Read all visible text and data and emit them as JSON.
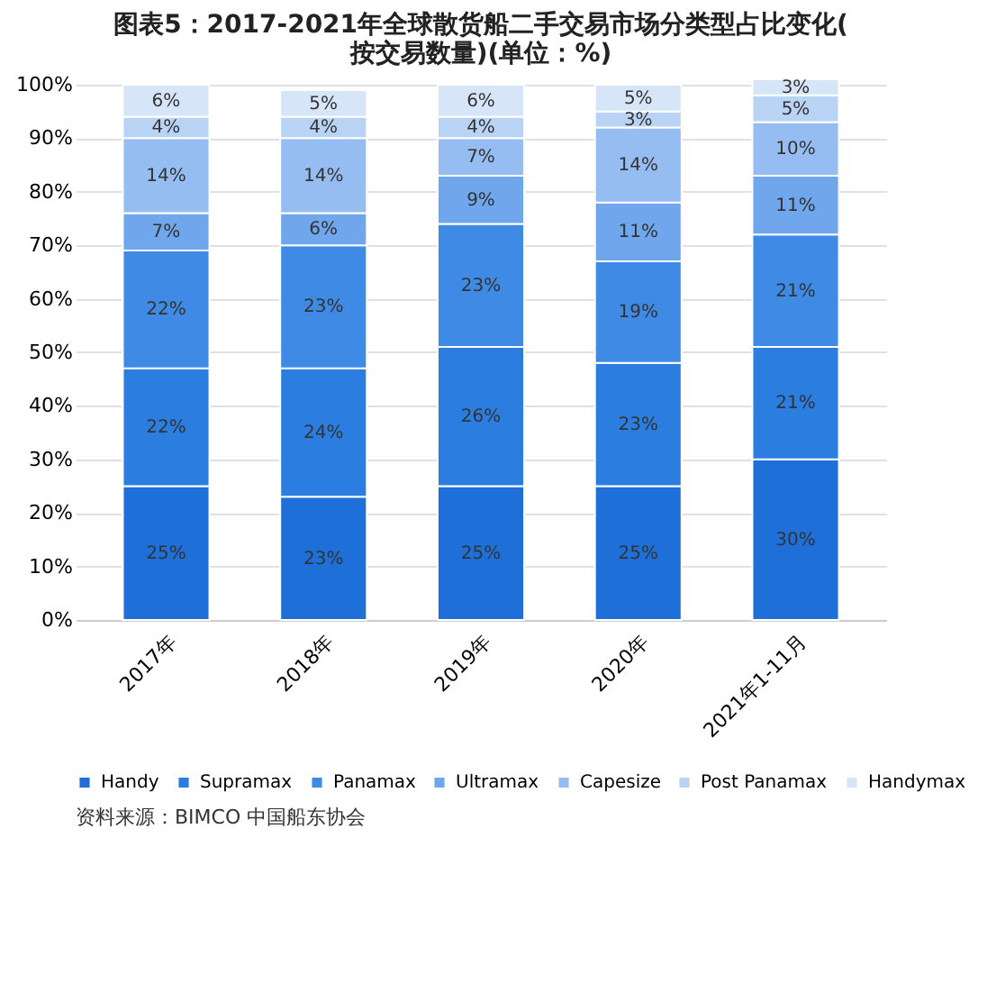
{
  "chart_data": {
    "type": "bar",
    "stacked": true,
    "title": "图表5：2017-2021年全球散货船二手交易市场分类型占比变化(按交易数量)(单位：%)",
    "categories": [
      "2017年",
      "2018年",
      "2019年",
      "2020年",
      "2021年1-11月"
    ],
    "ylim": [
      0,
      101
    ],
    "yticks": [
      {
        "value": 0,
        "label": "0%"
      },
      {
        "value": 10,
        "label": "10%"
      },
      {
        "value": 20,
        "label": "20%"
      },
      {
        "value": 30,
        "label": "30%"
      },
      {
        "value": 40,
        "label": "40%"
      },
      {
        "value": 50,
        "label": "50%"
      },
      {
        "value": 60,
        "label": "60%"
      },
      {
        "value": 70,
        "label": "70%"
      },
      {
        "value": 80,
        "label": "80%"
      },
      {
        "value": 90,
        "label": "90%"
      },
      {
        "value": 100,
        "label": "100%"
      }
    ],
    "grid": "y",
    "legend": "bottom",
    "series": [
      {
        "name": "Handy",
        "color": "#1f6fd8",
        "values": [
          25,
          23,
          25,
          25,
          30
        ],
        "value_labels": [
          "25%",
          "23%",
          "25%",
          "25%",
          "30%"
        ]
      },
      {
        "name": "Supramax",
        "color": "#2b7de0",
        "values": [
          22,
          24,
          26,
          23,
          21
        ],
        "value_labels": [
          "22%",
          "24%",
          "26%",
          "23%",
          "21%"
        ]
      },
      {
        "name": "Panamax",
        "color": "#3f8ae4",
        "values": [
          22,
          23,
          23,
          19,
          21
        ],
        "value_labels": [
          "22%",
          "23%",
          "23%",
          "19%",
          "21%"
        ]
      },
      {
        "name": "Ultramax",
        "color": "#6fa6ec",
        "values": [
          7,
          6,
          9,
          11,
          11
        ],
        "value_labels": [
          "7%",
          "6%",
          "9%",
          "11%",
          "11%"
        ]
      },
      {
        "name": "Capesize",
        "color": "#95bdf1",
        "values": [
          14,
          14,
          7,
          14,
          10
        ],
        "value_labels": [
          "14%",
          "14%",
          "7%",
          "14%",
          "10%"
        ]
      },
      {
        "name": "Post Panamax",
        "color": "#b9d3f5",
        "values": [
          4,
          4,
          4,
          3,
          5
        ],
        "value_labels": [
          "4%",
          "4%",
          "4%",
          "3%",
          "5%"
        ]
      },
      {
        "name": "Handymax",
        "color": "#d6e5f8",
        "values": [
          6,
          5,
          6,
          5,
          3
        ],
        "value_labels": [
          "6%",
          "5%",
          "6%",
          "5%",
          "3%"
        ]
      }
    ],
    "annotations": [
      "资料来源：BIMCO 中国船东协会"
    ]
  }
}
